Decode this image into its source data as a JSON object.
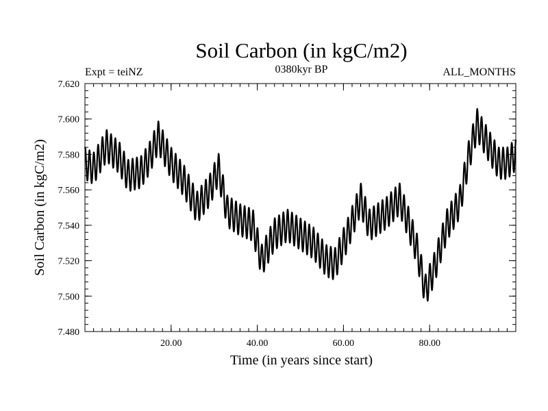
{
  "chart_data": {
    "type": "line",
    "title": "Soil Carbon (in kgC/m2)",
    "subtitle_left": "Expt = teiNZ",
    "subtitle_center": "0380kyr BP",
    "subtitle_right": "ALL_MONTHS",
    "xlabel": "Time (in years since start)",
    "ylabel": "Soil Carbon (in kgC/m2)",
    "xlim": [
      0,
      100
    ],
    "ylim": [
      7.48,
      7.62
    ],
    "x_major_ticks": [
      20,
      40,
      60,
      80
    ],
    "x_tick_labels": [
      "20.00",
      "40.00",
      "60.00",
      "80.00"
    ],
    "y_major_ticks": [
      7.48,
      7.5,
      7.52,
      7.54,
      7.56,
      7.58,
      7.6,
      7.62
    ],
    "y_tick_labels": [
      "7.480",
      "7.500",
      "7.520",
      "7.540",
      "7.560",
      "7.580",
      "7.600",
      "7.620"
    ],
    "x_minor_step": 2,
    "y_minor_step": 0.004,
    "grid": false,
    "line_color": "#000000",
    "seasonal_amplitude": 0.009,
    "series": [
      {
        "name": "Soil Carbon",
        "x": [
          0,
          2,
          5,
          8,
          10,
          13,
          15,
          17,
          20,
          23,
          26,
          29,
          31,
          33,
          36,
          39,
          41,
          44,
          47,
          50,
          53,
          56,
          58,
          61,
          64,
          66,
          70,
          73,
          75,
          77,
          79,
          81,
          84,
          87,
          89,
          91,
          93,
          96,
          98,
          100
        ],
        "mean": [
          7.575,
          7.572,
          7.585,
          7.578,
          7.568,
          7.57,
          7.578,
          7.59,
          7.575,
          7.565,
          7.55,
          7.56,
          7.572,
          7.548,
          7.543,
          7.54,
          7.52,
          7.535,
          7.54,
          7.535,
          7.53,
          7.52,
          7.518,
          7.535,
          7.555,
          7.54,
          7.547,
          7.555,
          7.542,
          7.527,
          7.503,
          7.515,
          7.54,
          7.553,
          7.578,
          7.597,
          7.588,
          7.575,
          7.575,
          7.58
        ]
      }
    ]
  }
}
